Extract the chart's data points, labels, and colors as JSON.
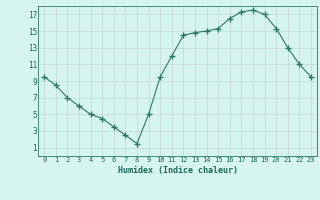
{
  "x": [
    0,
    1,
    2,
    3,
    4,
    5,
    6,
    7,
    8,
    9,
    10,
    11,
    12,
    13,
    14,
    15,
    16,
    17,
    18,
    19,
    20,
    21,
    22,
    23
  ],
  "y": [
    9.5,
    8.5,
    7.0,
    6.0,
    5.0,
    4.5,
    3.5,
    2.5,
    1.5,
    5.0,
    9.5,
    12.0,
    14.5,
    14.8,
    15.0,
    15.3,
    16.5,
    17.3,
    17.5,
    17.0,
    15.3,
    13.0,
    11.0,
    9.5
  ],
  "xlabel": "Humidex (Indice chaleur)",
  "xlim": [
    -0.5,
    23.5
  ],
  "ylim": [
    0,
    18
  ],
  "yticks": [
    1,
    3,
    5,
    7,
    9,
    11,
    13,
    15,
    17
  ],
  "xticks": [
    0,
    1,
    2,
    3,
    4,
    5,
    6,
    7,
    8,
    9,
    10,
    11,
    12,
    13,
    14,
    15,
    16,
    17,
    18,
    19,
    20,
    21,
    22,
    23
  ],
  "xtick_labels": [
    "0",
    "1",
    "2",
    "3",
    "4",
    "5",
    "6",
    "7",
    "8",
    "9",
    "10",
    "11",
    "12",
    "13",
    "14",
    "15",
    "16",
    "17",
    "18",
    "19",
    "20",
    "21",
    "22",
    "23"
  ],
  "line_color": "#2a7a65",
  "marker": "+",
  "marker_size": 4,
  "bg_color": "#d6f5ef",
  "grid_color": "#c0d8d0",
  "tick_color": "#1a6b5a",
  "label_color": "#1a6b5a"
}
